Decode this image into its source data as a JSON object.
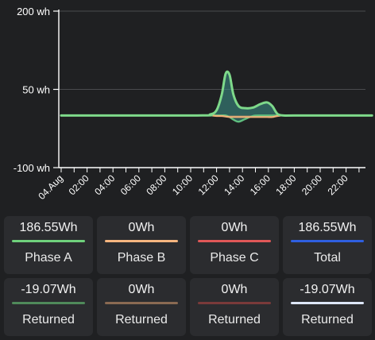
{
  "chart_data": {
    "type": "area",
    "y_ticks": [
      "200 wh",
      "50 wh",
      "-100 wh"
    ],
    "ylim": [
      -100,
      200
    ],
    "x_ticks": [
      "04.Aug",
      "02:00",
      "04:00",
      "06:00",
      "08:00",
      "10:00",
      "12:00",
      "14:00",
      "16:00",
      "18:00",
      "20:00",
      "22:00"
    ],
    "grid": true,
    "x_hours": [
      0,
      10.5,
      11.5,
      12.0,
      12.4,
      12.7,
      13.0,
      13.3,
      13.7,
      14.2,
      14.8,
      15.4,
      15.9,
      16.3,
      16.7,
      17.2,
      18.0,
      24
    ],
    "series": [
      {
        "color": "#7ed98a",
        "values": [
          0,
          0,
          2,
          10,
          40,
          80,
          78,
          40,
          18,
          14,
          15,
          22,
          25,
          18,
          3,
          0,
          0,
          0
        ]
      },
      {
        "color": "#f2b27a",
        "values": [
          0,
          0,
          0,
          -1,
          -1,
          -2,
          -3,
          -3,
          -3,
          -3,
          -3,
          -3,
          -3,
          -3,
          -1,
          0,
          0,
          0
        ]
      },
      {
        "color": "#5fbf7f",
        "values": [
          0,
          0,
          0,
          0,
          0,
          0,
          -3,
          -8,
          -12,
          -7,
          -1,
          0,
          0,
          0,
          0,
          0,
          0,
          0
        ]
      }
    ]
  },
  "cards": [
    {
      "value": "186.55Wh",
      "label": "Phase A",
      "color": "#6fd17c"
    },
    {
      "value": "0Wh",
      "label": "Phase B",
      "color": "#f5b57f"
    },
    {
      "value": "0Wh",
      "label": "Phase C",
      "color": "#e05858"
    },
    {
      "value": "186.55Wh",
      "label": "Total",
      "color": "#2f5fe0"
    },
    {
      "value": "-19.07Wh",
      "label": "Returned",
      "color": "#4f8a5a"
    },
    {
      "value": "0Wh",
      "label": "Returned",
      "color": "#8a6a52"
    },
    {
      "value": "0Wh",
      "label": "Returned",
      "color": "#7a3a3a"
    },
    {
      "value": "-19.07Wh",
      "label": "Returned",
      "color": "#dde6f8"
    }
  ]
}
